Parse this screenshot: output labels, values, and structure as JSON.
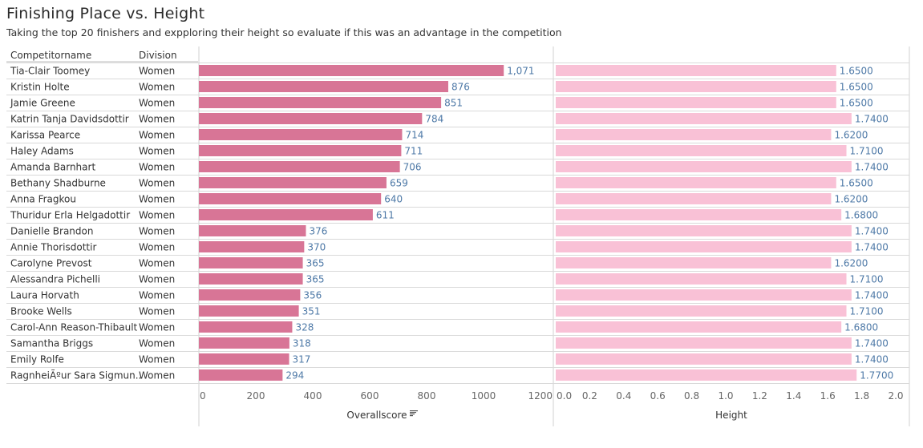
{
  "header": {
    "title": "Finishing Place vs. Height",
    "subtitle": "Taking the top 20 finishers and expploring their height so evaluate if this was an advantage in the competition"
  },
  "table": {
    "col_name": "Competitorname",
    "col_division": "Division"
  },
  "colors": {
    "score_bar": "#d87596",
    "height_bar": "#f9c1d6",
    "label": "#4e79a7",
    "gridline": "#d9d9d9"
  },
  "chart_data": [
    {
      "type": "bar",
      "orientation": "horizontal",
      "xlabel": "Overallscore",
      "sort_icon": "sort-descending-icon",
      "xlim": [
        0,
        1200
      ],
      "ticks": [
        "0",
        "200",
        "400",
        "600",
        "800",
        "1000",
        "1200"
      ],
      "categories": [
        "Tia-Clair Toomey",
        "Kristin Holte",
        "Jamie Greene",
        "Katrin Tanja Davidsdottir",
        "Karissa Pearce",
        "Haley Adams",
        "Amanda Barnhart",
        "Bethany Shadburne",
        "Anna Fragkou",
        "Thuridur Erla Helgadottir",
        "Danielle Brandon",
        "Annie Thorisdottir",
        "Carolyne Prevost",
        "Alessandra Pichelli",
        "Laura Horvath",
        "Brooke Wells",
        "Carol-Ann Reason-Thibault",
        "Samantha Briggs",
        "Emily Rolfe",
        "RagnheiÃºur Sara Sigmun.."
      ],
      "division": [
        "Women",
        "Women",
        "Women",
        "Women",
        "Women",
        "Women",
        "Women",
        "Women",
        "Women",
        "Women",
        "Women",
        "Women",
        "Women",
        "Women",
        "Women",
        "Women",
        "Women",
        "Women",
        "Women",
        "Women"
      ],
      "values": [
        1071,
        876,
        851,
        784,
        714,
        711,
        706,
        659,
        640,
        611,
        376,
        370,
        365,
        365,
        356,
        351,
        328,
        318,
        317,
        294
      ],
      "labels": [
        "1,071",
        "876",
        "851",
        "784",
        "714",
        "711",
        "706",
        "659",
        "640",
        "611",
        "376",
        "370",
        "365",
        "365",
        "356",
        "351",
        "328",
        "318",
        "317",
        "294"
      ]
    },
    {
      "type": "bar",
      "orientation": "horizontal",
      "xlabel": "Height",
      "xlim": [
        0,
        2.0
      ],
      "ticks": [
        "0.0",
        "0.2",
        "0.4",
        "0.6",
        "0.8",
        "1.0",
        "1.2",
        "1.4",
        "1.6",
        "1.8",
        "2.0"
      ],
      "values": [
        1.65,
        1.65,
        1.65,
        1.74,
        1.62,
        1.71,
        1.74,
        1.65,
        1.62,
        1.68,
        1.74,
        1.74,
        1.62,
        1.71,
        1.74,
        1.71,
        1.68,
        1.74,
        1.74,
        1.77
      ],
      "labels": [
        "1.6500",
        "1.6500",
        "1.6500",
        "1.7400",
        "1.6200",
        "1.7100",
        "1.7400",
        "1.6500",
        "1.6200",
        "1.6800",
        "1.7400",
        "1.7400",
        "1.6200",
        "1.7100",
        "1.7400",
        "1.7100",
        "1.6800",
        "1.7400",
        "1.7400",
        "1.7700"
      ]
    }
  ]
}
